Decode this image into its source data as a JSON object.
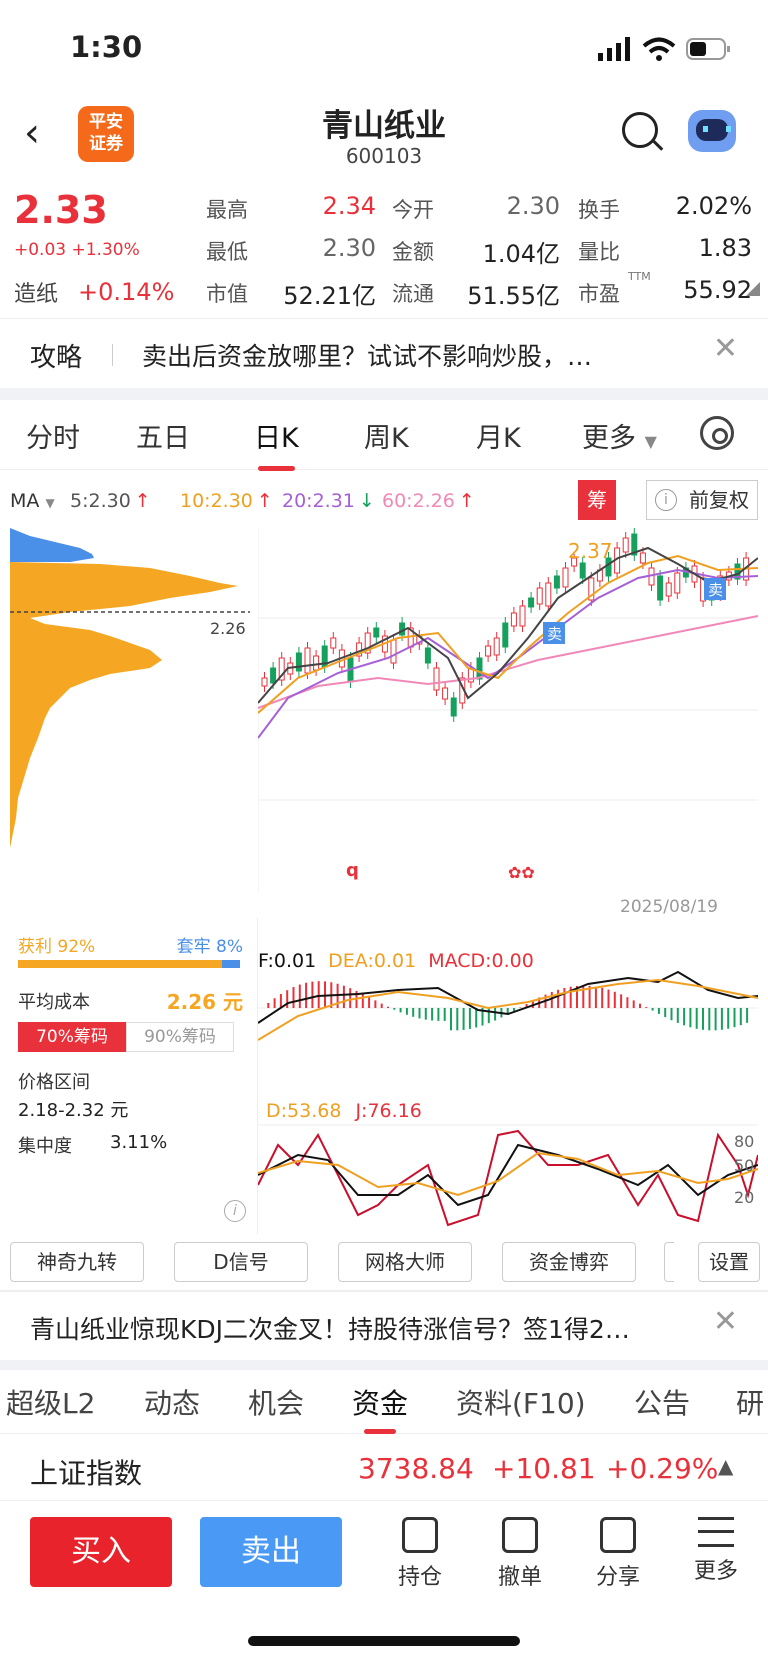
{
  "status_bar": {
    "time": "1:30"
  },
  "header": {
    "logo_line1": "平安",
    "logo_line2": "证券",
    "title": "青山纸业",
    "code": "600103"
  },
  "quote": {
    "price": "2.33",
    "change": "+0.03 +1.30%",
    "sector_name": "造纸",
    "sector_change": "+0.14%",
    "fields": [
      {
        "label": "最高",
        "value": "2.34",
        "color": "#e8313a"
      },
      {
        "label": "今开",
        "value": "2.30",
        "color": "#666666"
      },
      {
        "label": "换手",
        "value": "2.02%",
        "color": "#222222"
      },
      {
        "label": "最低",
        "value": "2.30",
        "color": "#666666"
      },
      {
        "label": "金额",
        "value": "1.04亿",
        "color": "#222222"
      },
      {
        "label": "量比",
        "value": "1.83",
        "color": "#222222"
      },
      {
        "label": "市值",
        "value": "52.21亿",
        "color": "#222222"
      },
      {
        "label": "流通",
        "value": "51.55亿",
        "color": "#222222"
      },
      {
        "label": "市盈",
        "value": "55.92",
        "color": "#222222",
        "sup": "TTM"
      }
    ]
  },
  "promo1": {
    "tag": "攻略",
    "text": "卖出后资金放哪里？试试不影响炒股，…"
  },
  "period_tabs": [
    "分时",
    "五日",
    "日K",
    "周K",
    "月K",
    "更多"
  ],
  "active_period": "日K",
  "ma": {
    "label": "MA",
    "items": [
      {
        "text": "5:2.30",
        "arrow": "↑",
        "color": "#555555",
        "arrow_color": "#e8313a"
      },
      {
        "text": "10:2.30",
        "arrow": "↑",
        "color": "#f0a020",
        "arrow_color": "#e8313a"
      },
      {
        "text": "20:2.31",
        "arrow": "↓",
        "color": "#a560d8",
        "arrow_color": "#16a05d"
      },
      {
        "text": "60:2.26",
        "arrow": "↑",
        "color": "#f088b8",
        "arrow_color": "#e8313a"
      }
    ],
    "chou_label": "筹",
    "fq_label": "前复权"
  },
  "kline": {
    "high_label": "2.37",
    "cost_label": "2.26",
    "date_label": "2025/08/19",
    "buy_mark": "卖",
    "q_mark": "q"
  },
  "chip": {
    "profit_label": "获利 92%",
    "trapped_label": "套牢 8%",
    "profit_pct": 92,
    "avg_cost_label": "平均成本",
    "avg_cost_value": "2.26 元",
    "tab70": "70%筹码",
    "tab90": "90%筹码",
    "range_label": "价格区间",
    "range_value": "2.18-2.32 元",
    "concentration_label": "集中度",
    "concentration_value": "3.11%"
  },
  "macd": {
    "dif": "F:0.01",
    "dea": "DEA:0.01",
    "macd": "MACD:0.00"
  },
  "kdj": {
    "d": "D:53.68",
    "j": "J:76.16",
    "levels": [
      "80",
      "50",
      "20"
    ]
  },
  "tools": [
    "神奇九转",
    "D信号",
    "网格大师",
    "资金博弈",
    "设置"
  ],
  "promo2": {
    "text": "青山纸业惊现KDJ二次金叉！持股待涨信号？签1得2…"
  },
  "bottom_tabs": [
    "超级L2",
    "动态",
    "机会",
    "资金",
    "资料(F10)",
    "公告",
    "研"
  ],
  "active_bottom_tab": "资金",
  "index": {
    "name": "上证指数",
    "value": "3738.84",
    "change": "+10.81",
    "pct": "+0.29%"
  },
  "trade": {
    "buy": "买入",
    "sell": "卖出",
    "hold": "持仓",
    "cancel": "撤单",
    "share": "分享",
    "more": "更多"
  },
  "colors": {
    "up": "#e8313a",
    "down": "#16a05d",
    "accent_blue": "#4a9af5",
    "chip_orange": "#f5a623"
  }
}
